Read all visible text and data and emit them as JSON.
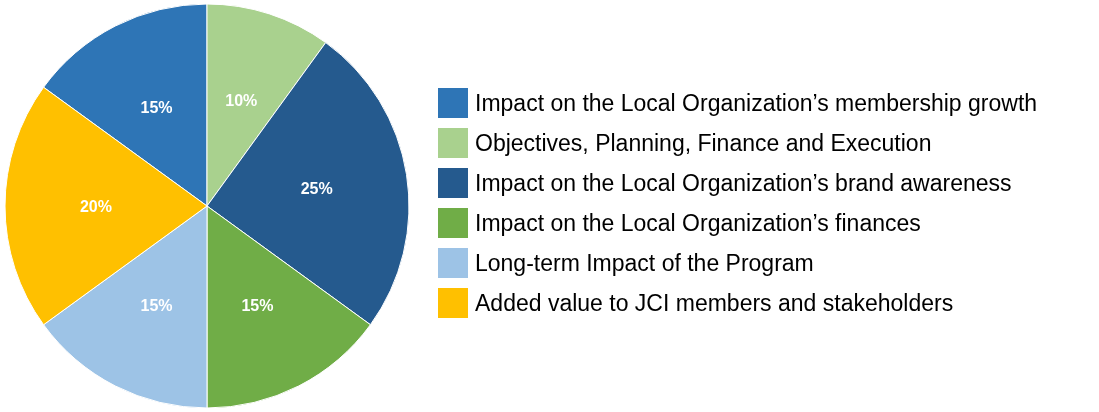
{
  "chart_data": {
    "type": "pie",
    "categories": [
      "Impact on the Local Organization’s membership growth",
      "Objectives, Planning, Finance and Execution",
      "Impact on the Local Organization’s brand awareness",
      "Impact on the Local Organization’s finances",
      "Long-term Impact of the Program",
      "Added value to JCI members and stakeholders"
    ],
    "values": [
      15,
      10,
      25,
      15,
      15,
      20
    ],
    "colors": [
      "#2e75b6",
      "#a9d18e",
      "#255a8e",
      "#70ad47",
      "#9dc3e6",
      "#ffc000"
    ],
    "value_labels": [
      "15%",
      "10%",
      "25%",
      "15%",
      "15%",
      "20%"
    ],
    "legend": "right"
  }
}
